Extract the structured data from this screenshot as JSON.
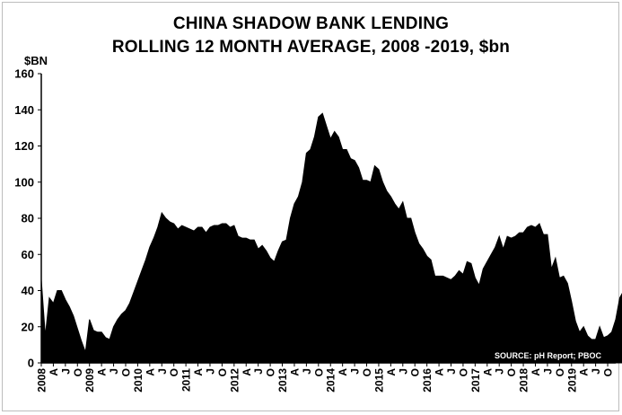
{
  "chart_data": {
    "type": "area",
    "title": "CHINA SHADOW BANK LENDING",
    "subtitle": "ROLLING 12 MONTH AVERAGE, 2008 -2019, $bn",
    "ylabel": "$BN",
    "ylim": [
      0,
      160
    ],
    "yticks": [
      0,
      20,
      40,
      60,
      80,
      100,
      120,
      140,
      160
    ],
    "grid": false,
    "source": "SOURCE: pH Report; PBOC",
    "fill_color": "#000000",
    "x_start": "2008-01",
    "x_end": "2019-12",
    "x_tick_labels": [
      "2008",
      "A",
      "J",
      "O",
      "2009",
      "A",
      "J",
      "O",
      "2010",
      "A",
      "J",
      "O",
      "2011",
      "A",
      "J",
      "O",
      "2012",
      "A",
      "J",
      "O",
      "2013",
      "A",
      "J",
      "O",
      "2014",
      "A",
      "J",
      "O",
      "2015",
      "A",
      "J",
      "O",
      "2016",
      "A",
      "J",
      "O",
      "2017",
      "A",
      "J",
      "O",
      "2018",
      "A",
      "J",
      "O",
      "2019",
      "A",
      "J",
      "O"
    ],
    "values": [
      46,
      15,
      36,
      33,
      40,
      40,
      35,
      31,
      26,
      19,
      12,
      6,
      24,
      18,
      17,
      17,
      14,
      13,
      20,
      24,
      27,
      29,
      33,
      39,
      45,
      51,
      57,
      64,
      69,
      75,
      83,
      80,
      78,
      77,
      74,
      76,
      75,
      74,
      73,
      75,
      75,
      72,
      75,
      76,
      76,
      77,
      77,
      75,
      76,
      70,
      69,
      69,
      68,
      68,
      63,
      65,
      62,
      58,
      56,
      62,
      67,
      68,
      80,
      88,
      92,
      100,
      116,
      118,
      125,
      136,
      138,
      131,
      124,
      128,
      125,
      118,
      118,
      113,
      112,
      108,
      101,
      101,
      100,
      109,
      107,
      100,
      95,
      92,
      88,
      85,
      89,
      80,
      80,
      72,
      66,
      63,
      59,
      57,
      48,
      48,
      48,
      47,
      46,
      48,
      51,
      49,
      56,
      55,
      47,
      43,
      52,
      56,
      60,
      64,
      70,
      63,
      70,
      69,
      70,
      72,
      72,
      75,
      76,
      75,
      77,
      71,
      71,
      52,
      58,
      47,
      48,
      44,
      34,
      23,
      17,
      20,
      15,
      13,
      13,
      20,
      14,
      15,
      17,
      24,
      36,
      40,
      46,
      42,
      43,
      43
    ]
  }
}
